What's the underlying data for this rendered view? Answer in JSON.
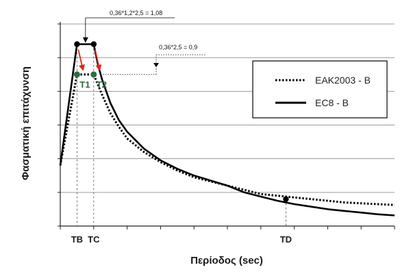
{
  "chart_data": {
    "type": "line",
    "xlabel": "Περίοδος (sec)",
    "ylabel": "Φασματική επιτάχυνση",
    "x_ticks": [
      "TB",
      "TC",
      "TD"
    ],
    "xlim": [
      0,
      4
    ],
    "ylim": [
      0,
      1.2
    ],
    "grid": "horizontal",
    "legend_position": "upper-right",
    "series": [
      {
        "name": "EAK2003 - B",
        "style": "dotted",
        "color": "#000000",
        "points": [
          [
            0,
            0.36
          ],
          [
            0.2,
            0.9
          ],
          [
            0.4,
            0.9
          ],
          [
            0.45,
            0.84
          ],
          [
            0.5,
            0.78
          ],
          [
            0.6,
            0.67
          ],
          [
            0.7,
            0.59
          ],
          [
            0.8,
            0.52
          ],
          [
            1.0,
            0.44
          ],
          [
            1.2,
            0.38
          ],
          [
            1.4,
            0.33
          ],
          [
            1.6,
            0.29
          ],
          [
            1.8,
            0.265
          ],
          [
            2.0,
            0.24
          ],
          [
            2.2,
            0.215
          ],
          [
            2.4,
            0.19
          ],
          [
            2.6,
            0.18
          ],
          [
            2.8,
            0.17
          ],
          [
            3.0,
            0.16
          ],
          [
            3.2,
            0.15
          ],
          [
            3.4,
            0.14
          ],
          [
            3.6,
            0.135
          ],
          [
            3.8,
            0.13
          ],
          [
            4.0,
            0.125
          ]
        ]
      },
      {
        "name": "EC8 - B",
        "style": "solid",
        "color": "#000000",
        "points": [
          [
            0,
            0.36
          ],
          [
            0.2,
            1.08
          ],
          [
            0.4,
            1.08
          ],
          [
            0.45,
            0.96
          ],
          [
            0.5,
            0.87
          ],
          [
            0.6,
            0.73
          ],
          [
            0.7,
            0.63
          ],
          [
            0.8,
            0.56
          ],
          [
            1.0,
            0.46
          ],
          [
            1.2,
            0.39
          ],
          [
            1.4,
            0.34
          ],
          [
            1.6,
            0.3
          ],
          [
            1.8,
            0.27
          ],
          [
            2.0,
            0.24
          ],
          [
            2.2,
            0.2
          ],
          [
            2.4,
            0.175
          ],
          [
            2.6,
            0.15
          ],
          [
            2.8,
            0.13
          ],
          [
            3.0,
            0.115
          ],
          [
            3.2,
            0.1
          ],
          [
            3.4,
            0.09
          ],
          [
            3.6,
            0.08
          ],
          [
            3.8,
            0.07
          ],
          [
            4.0,
            0.063
          ]
        ]
      }
    ],
    "markers": [
      {
        "x": 0.2,
        "y": 1.08
      },
      {
        "x": 0.4,
        "y": 1.08
      },
      {
        "x": 2.7,
        "y": 0.16
      }
    ],
    "green_markers": [
      {
        "label": "T1",
        "x": 0.2,
        "y": 0.9
      },
      {
        "label": "T2",
        "x": 0.4,
        "y": 0.9
      }
    ],
    "vertical_guides": [
      {
        "label": "TB",
        "x": 0.2
      },
      {
        "label": "TC",
        "x": 0.4
      },
      {
        "label": "TD",
        "x": 2.7
      }
    ],
    "annotations": [
      {
        "text": "0,36*1,2*2,5 = 1,08",
        "x": 0.4,
        "y": 1.08
      },
      {
        "text": "0,36*2,5 = 0,9",
        "x": 0.4,
        "y": 0.9
      }
    ]
  }
}
